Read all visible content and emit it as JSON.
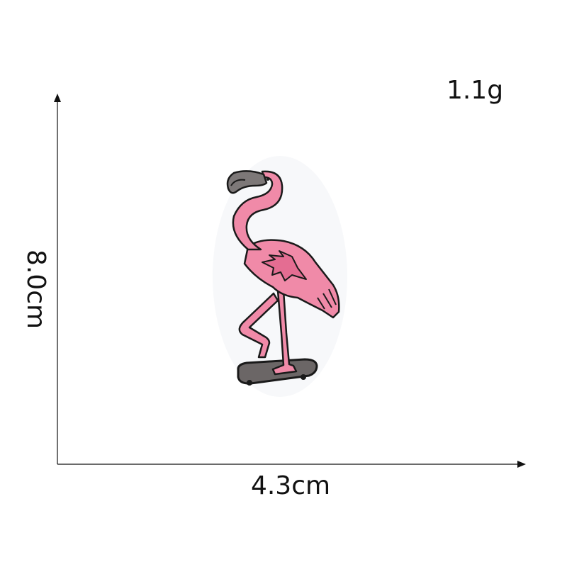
{
  "product": {
    "weight": "1.1g",
    "width": "4.3cm",
    "height": "8.0cm",
    "subject": "flamingo-on-skateboard-patch-icon"
  },
  "colors": {
    "pink": "#f08aa8",
    "pink_dark": "#e46d92",
    "outline": "#1a1a1a",
    "board": "#6b6666",
    "beak": "#7d7878",
    "axis": "#111111"
  }
}
